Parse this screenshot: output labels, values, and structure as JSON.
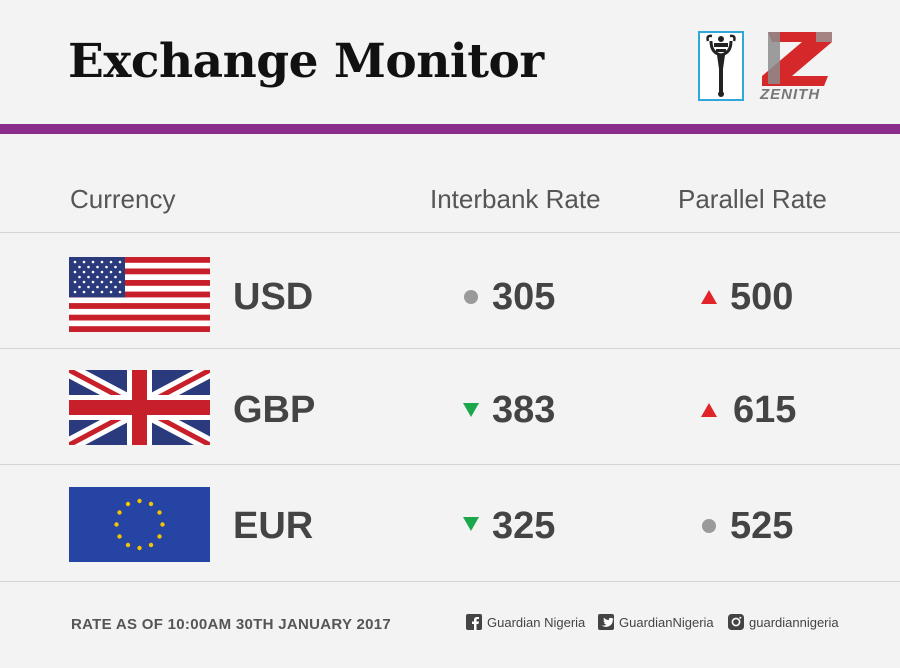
{
  "header": {
    "title": "Exchange Monitor",
    "zenith_label": "ZENITH",
    "band_color": "#8a2c8b"
  },
  "table": {
    "col_currency": "Currency",
    "col_interbank": "Interbank Rate",
    "col_parallel": "Parallel Rate",
    "rows": [
      {
        "code": "USD",
        "flag": "usa-flag",
        "interbank": "305",
        "interbank_trend": "neutral",
        "parallel": "500",
        "parallel_trend": "up"
      },
      {
        "code": "GBP",
        "flag": "uk-flag",
        "interbank": "383",
        "interbank_trend": "down",
        "parallel": "615",
        "parallel_trend": "up"
      },
      {
        "code": "EUR",
        "flag": "eu-flag",
        "interbank": "325",
        "interbank_trend": "down",
        "parallel": "525",
        "parallel_trend": "neutral"
      }
    ],
    "trend_colors": {
      "up": "#e0242a",
      "down": "#1aa84a",
      "neutral": "#9a9a9a"
    }
  },
  "footer": {
    "note": "RATE AS OF 10:00AM 30TH JANUARY 2017",
    "facebook": "Guardian Nigeria",
    "twitter": "GuardianNigeria",
    "instagram": "guardiannigeria"
  }
}
